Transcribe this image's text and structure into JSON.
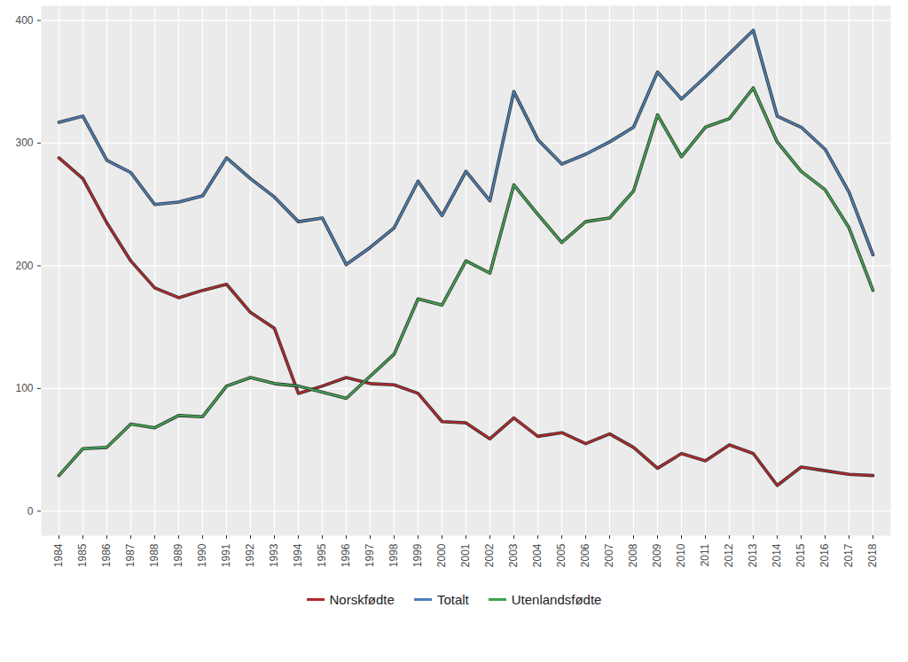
{
  "chart_data": {
    "type": "line",
    "categories": [
      "1984",
      "1985",
      "1986",
      "1987",
      "1988",
      "1989",
      "1990",
      "1991",
      "1992",
      "1993",
      "1994",
      "1995",
      "1996",
      "1997",
      "1998",
      "1999",
      "2000",
      "2001",
      "2002",
      "2003",
      "2004",
      "2005",
      "2006",
      "2007",
      "2008",
      "2009",
      "2010",
      "2011",
      "2012",
      "2013",
      "2014",
      "2015",
      "2016",
      "2017",
      "2018"
    ],
    "series": [
      {
        "name": "Norskfødte",
        "color": "#b5282a",
        "values": [
          288,
          271,
          235,
          204,
          182,
          174,
          180,
          185,
          162,
          149,
          96,
          102,
          109,
          104,
          103,
          96,
          73,
          72,
          59,
          76,
          61,
          64,
          55,
          63,
          52,
          35,
          47,
          41,
          54,
          47,
          21,
          36,
          33,
          30,
          29
        ]
      },
      {
        "name": "Totalt",
        "color": "#4a7fb5",
        "values": [
          317,
          322,
          286,
          276,
          250,
          252,
          257,
          288,
          271,
          256,
          236,
          239,
          201,
          215,
          231,
          269,
          241,
          277,
          253,
          342,
          303,
          283,
          291,
          301,
          313,
          358,
          336,
          354,
          373,
          392,
          322,
          313,
          295,
          260,
          209
        ]
      },
      {
        "name": "Utenlandsfødte",
        "color": "#3fa34d",
        "values": [
          29,
          51,
          52,
          71,
          68,
          78,
          77,
          102,
          109,
          104,
          102,
          97,
          92,
          110,
          128,
          173,
          168,
          204,
          194,
          266,
          242,
          219,
          236,
          239,
          261,
          323,
          289,
          313,
          320,
          345,
          301,
          277,
          262,
          231,
          180
        ]
      }
    ],
    "ylim": [
      -20,
      412
    ],
    "yticks": [
      0,
      100,
      200,
      300,
      400
    ],
    "grid": true,
    "legend": "bottom"
  }
}
